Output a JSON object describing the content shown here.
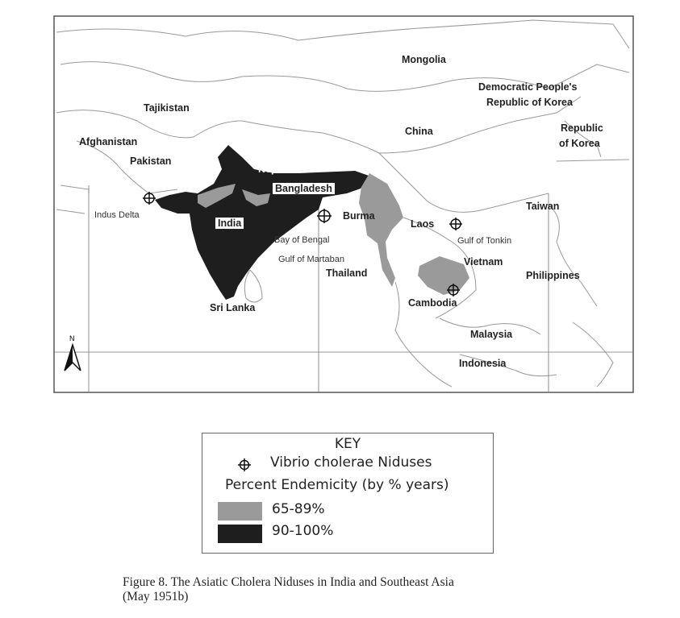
{
  "map": {
    "countries": [
      "Mongolia",
      "Democratic People's",
      "Republic of Korea",
      "Tajikistan",
      "Afghanistan",
      "China",
      "Republic",
      "of Korea",
      "Pakistan",
      "Nepal",
      "Bangladesh",
      "Taiwan",
      "India",
      "Burma",
      "Laos",
      "Vietnam",
      "Thailand",
      "Philippines",
      "Cambodia",
      "Sri Lanka",
      "Malaysia",
      "Indonesia"
    ],
    "water": {
      "indus": "Indus Delta",
      "bengal": "Bay of Bengal",
      "martaban": "Gulf of Martaban",
      "tonkin": "Gulf of Tonkin"
    },
    "north_arrow": "N",
    "niduses": [
      "Indus Delta",
      "Bay of Bengal",
      "Laos",
      "Cambodia"
    ],
    "colors": {
      "high": "#1e1e1e",
      "medium": "#9a9a9a",
      "border": "#888888"
    }
  },
  "key": {
    "title": "KEY",
    "nidus_label": "Vibrio cholerae Niduses",
    "endemicity_title": "Percent Endemicity (by % years)",
    "classes": [
      {
        "label": "65-89%",
        "color": "#9a9a9a"
      },
      {
        "label": "90-100%",
        "color": "#1e1e1e"
      }
    ]
  },
  "caption": {
    "line1": "Figure 8.  The Asiatic Cholera Niduses in India and Southeast Asia",
    "line2": "(May 1951b)"
  }
}
